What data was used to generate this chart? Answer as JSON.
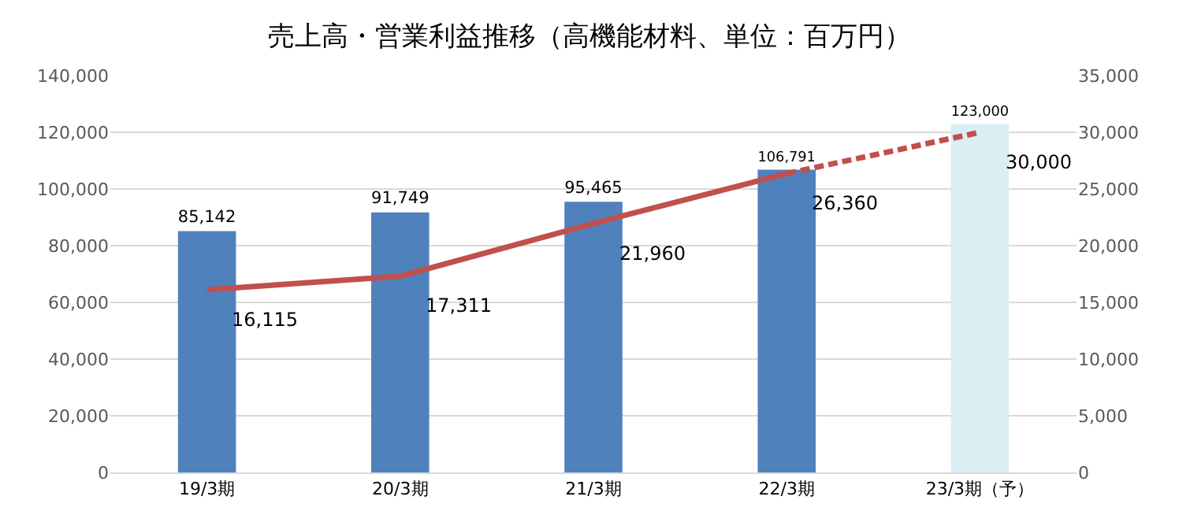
{
  "chart_data": {
    "type": "bar",
    "title": "売上高・営業利益推移（高機能材料、単位：百万円）",
    "categories": [
      "19/3期",
      "20/3期",
      "21/3期",
      "22/3期",
      "23/3期（予）"
    ],
    "series": [
      {
        "colors": [
          "#4f81bd",
          "#4f81bd",
          "#4f81bd",
          "#4f81bd",
          "#daeef3"
        ],
        "values": [
          85142,
          91749,
          95465,
          106791,
          123000
        ],
        "value_labels": [
          "85,142",
          "91,749",
          "95,465",
          "106,791",
          "123,000"
        ]
      },
      {
        "type": "line",
        "axis": "y2",
        "color": "#c0504d",
        "line_style": "solid",
        "values": [
          16115,
          17311,
          21960,
          26360,
          null
        ],
        "value_labels": [
          "16,115",
          "17,311",
          "21,960",
          "26,360",
          null
        ]
      },
      {
        "type": "line",
        "axis": "y2",
        "color": "#c0504d",
        "line_style": "dashed",
        "values": [
          null,
          null,
          null,
          26360,
          30000
        ],
        "value_labels": [
          null,
          null,
          null,
          null,
          "30,000"
        ]
      }
    ],
    "ylim": [
      0,
      140000
    ],
    "yticks": [
      {
        "value": 0,
        "label": "0"
      },
      {
        "value": 20000,
        "label": "20,000"
      },
      {
        "value": 40000,
        "label": "40,000"
      },
      {
        "value": 60000,
        "label": "60,000"
      },
      {
        "value": 80000,
        "label": "80,000"
      },
      {
        "value": 100000,
        "label": "100,000"
      },
      {
        "value": 120000,
        "label": "120,000"
      },
      {
        "value": 140000,
        "label": "140,000"
      }
    ],
    "y2lim": [
      0,
      35000
    ],
    "y2ticks": [
      {
        "value": 0,
        "label": "0"
      },
      {
        "value": 5000,
        "label": "5,000"
      },
      {
        "value": 10000,
        "label": "10,000"
      },
      {
        "value": 15000,
        "label": "15,000"
      },
      {
        "value": 20000,
        "label": "20,000"
      },
      {
        "value": 25000,
        "label": "25,000"
      },
      {
        "value": 30000,
        "label": "30,000"
      },
      {
        "value": 35000,
        "label": "35,000"
      }
    ],
    "grid": "y"
  }
}
